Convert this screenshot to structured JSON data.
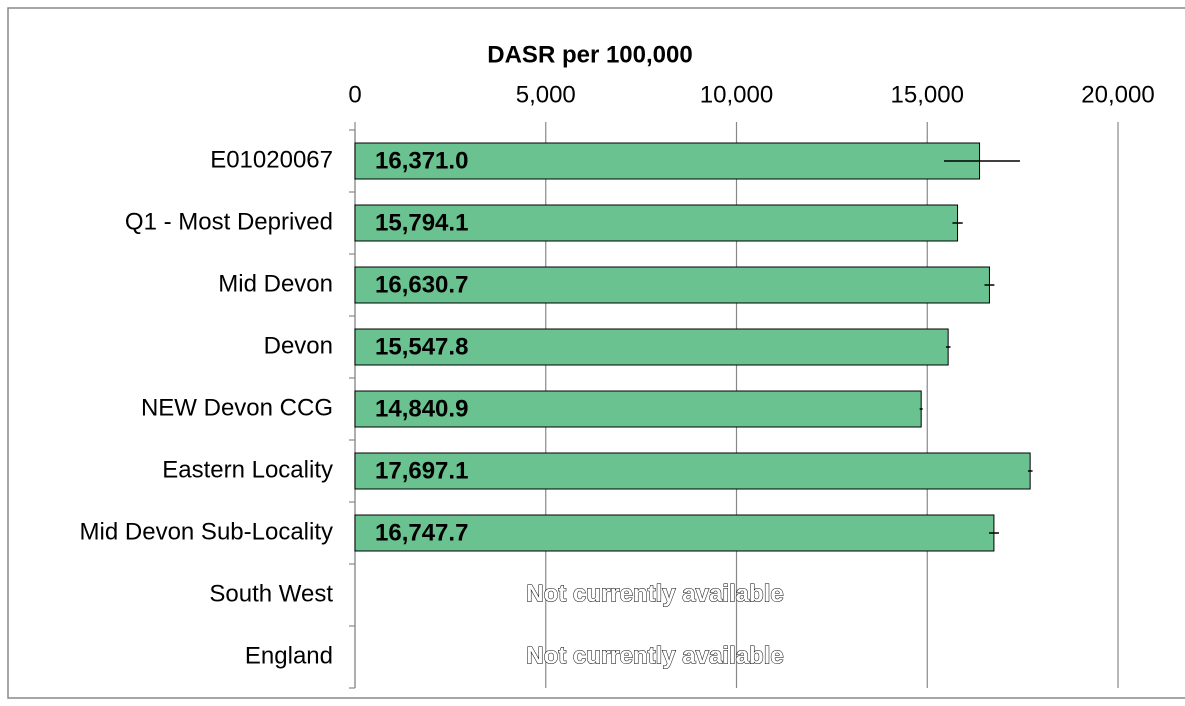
{
  "chart_data": {
    "type": "bar",
    "orientation": "horizontal",
    "x_label": "DASR per 100,000",
    "categories": [
      "E01020067",
      "Q1 - Most Deprived",
      "Mid Devon",
      "Devon",
      "NEW Devon CCG",
      "Eastern Locality",
      "Mid Devon Sub-Locality",
      "South West",
      "England"
    ],
    "values": [
      16371.0,
      15794.1,
      16630.7,
      15547.8,
      14840.9,
      17697.1,
      16747.7,
      null,
      null
    ],
    "value_labels": [
      "16,371.0",
      "15,794.1",
      "16,630.7",
      "15,547.8",
      "14,840.9",
      "17,697.1",
      "16,747.7",
      "Not currently available",
      "Not currently available"
    ],
    "error_lower": [
      15440,
      15660,
      16500,
      15490,
      14800,
      17640,
      16620,
      null,
      null
    ],
    "error_upper": [
      17430,
      15930,
      16760,
      15610,
      14880,
      17760,
      16880,
      null,
      null
    ],
    "color": "#69c28f",
    "xlim": [
      0,
      20000
    ],
    "xticks": [
      0,
      {
        "value": 5000,
        "label": "5,000"
      },
      {
        "value": 10000,
        "label": "10,000"
      },
      {
        "value": 15000,
        "label": "15,000"
      },
      {
        "value": 20000,
        "label": "20,000"
      }
    ],
    "grid": true
  }
}
